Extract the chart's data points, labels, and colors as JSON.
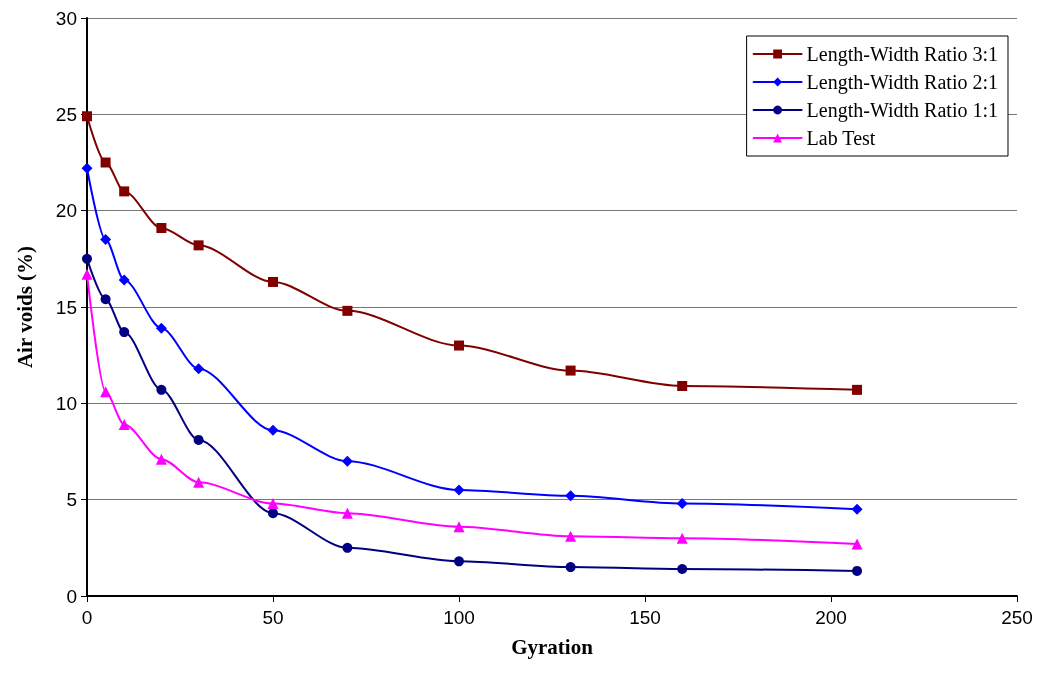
{
  "chart_data": {
    "type": "line",
    "xlabel": "Gyration",
    "ylabel": "Air voids (%)",
    "x": [
      0,
      5,
      10,
      20,
      30,
      50,
      70,
      100,
      130,
      160,
      207
    ],
    "xlim": [
      0,
      250
    ],
    "xticks": [
      0,
      50,
      100,
      150,
      200,
      250
    ],
    "ylim": [
      0,
      30
    ],
    "yticks": [
      0,
      5,
      10,
      15,
      20,
      25,
      30
    ],
    "grid": "y",
    "legend": "top right",
    "line_style": "solid",
    "series": [
      {
        "name": "Length-Width Ratio 3:1",
        "color": "#800000",
        "marker": "square",
        "values": [
          24.9,
          22.5,
          21.0,
          19.1,
          18.2,
          16.3,
          14.8,
          13.0,
          11.7,
          10.9,
          10.7
        ]
      },
      {
        "name": "Length-Width Ratio 2:1",
        "color": "#0000ff",
        "marker": "diamond",
        "values": [
          22.2,
          18.5,
          16.4,
          13.9,
          11.8,
          8.6,
          7.0,
          5.5,
          5.2,
          4.8,
          4.5
        ]
      },
      {
        "name": "Length-Width Ratio 1:1",
        "color": "#000080",
        "marker": "circle",
        "values": [
          17.5,
          15.4,
          13.7,
          10.7,
          8.1,
          4.3,
          2.5,
          1.8,
          1.5,
          1.4,
          1.3
        ]
      },
      {
        "name": "Lab Test",
        "color": "#ff00ff",
        "marker": "triangle",
        "values": [
          16.7,
          10.6,
          8.9,
          7.1,
          5.9,
          4.8,
          4.3,
          3.6,
          3.1,
          3.0,
          2.7
        ]
      }
    ]
  }
}
